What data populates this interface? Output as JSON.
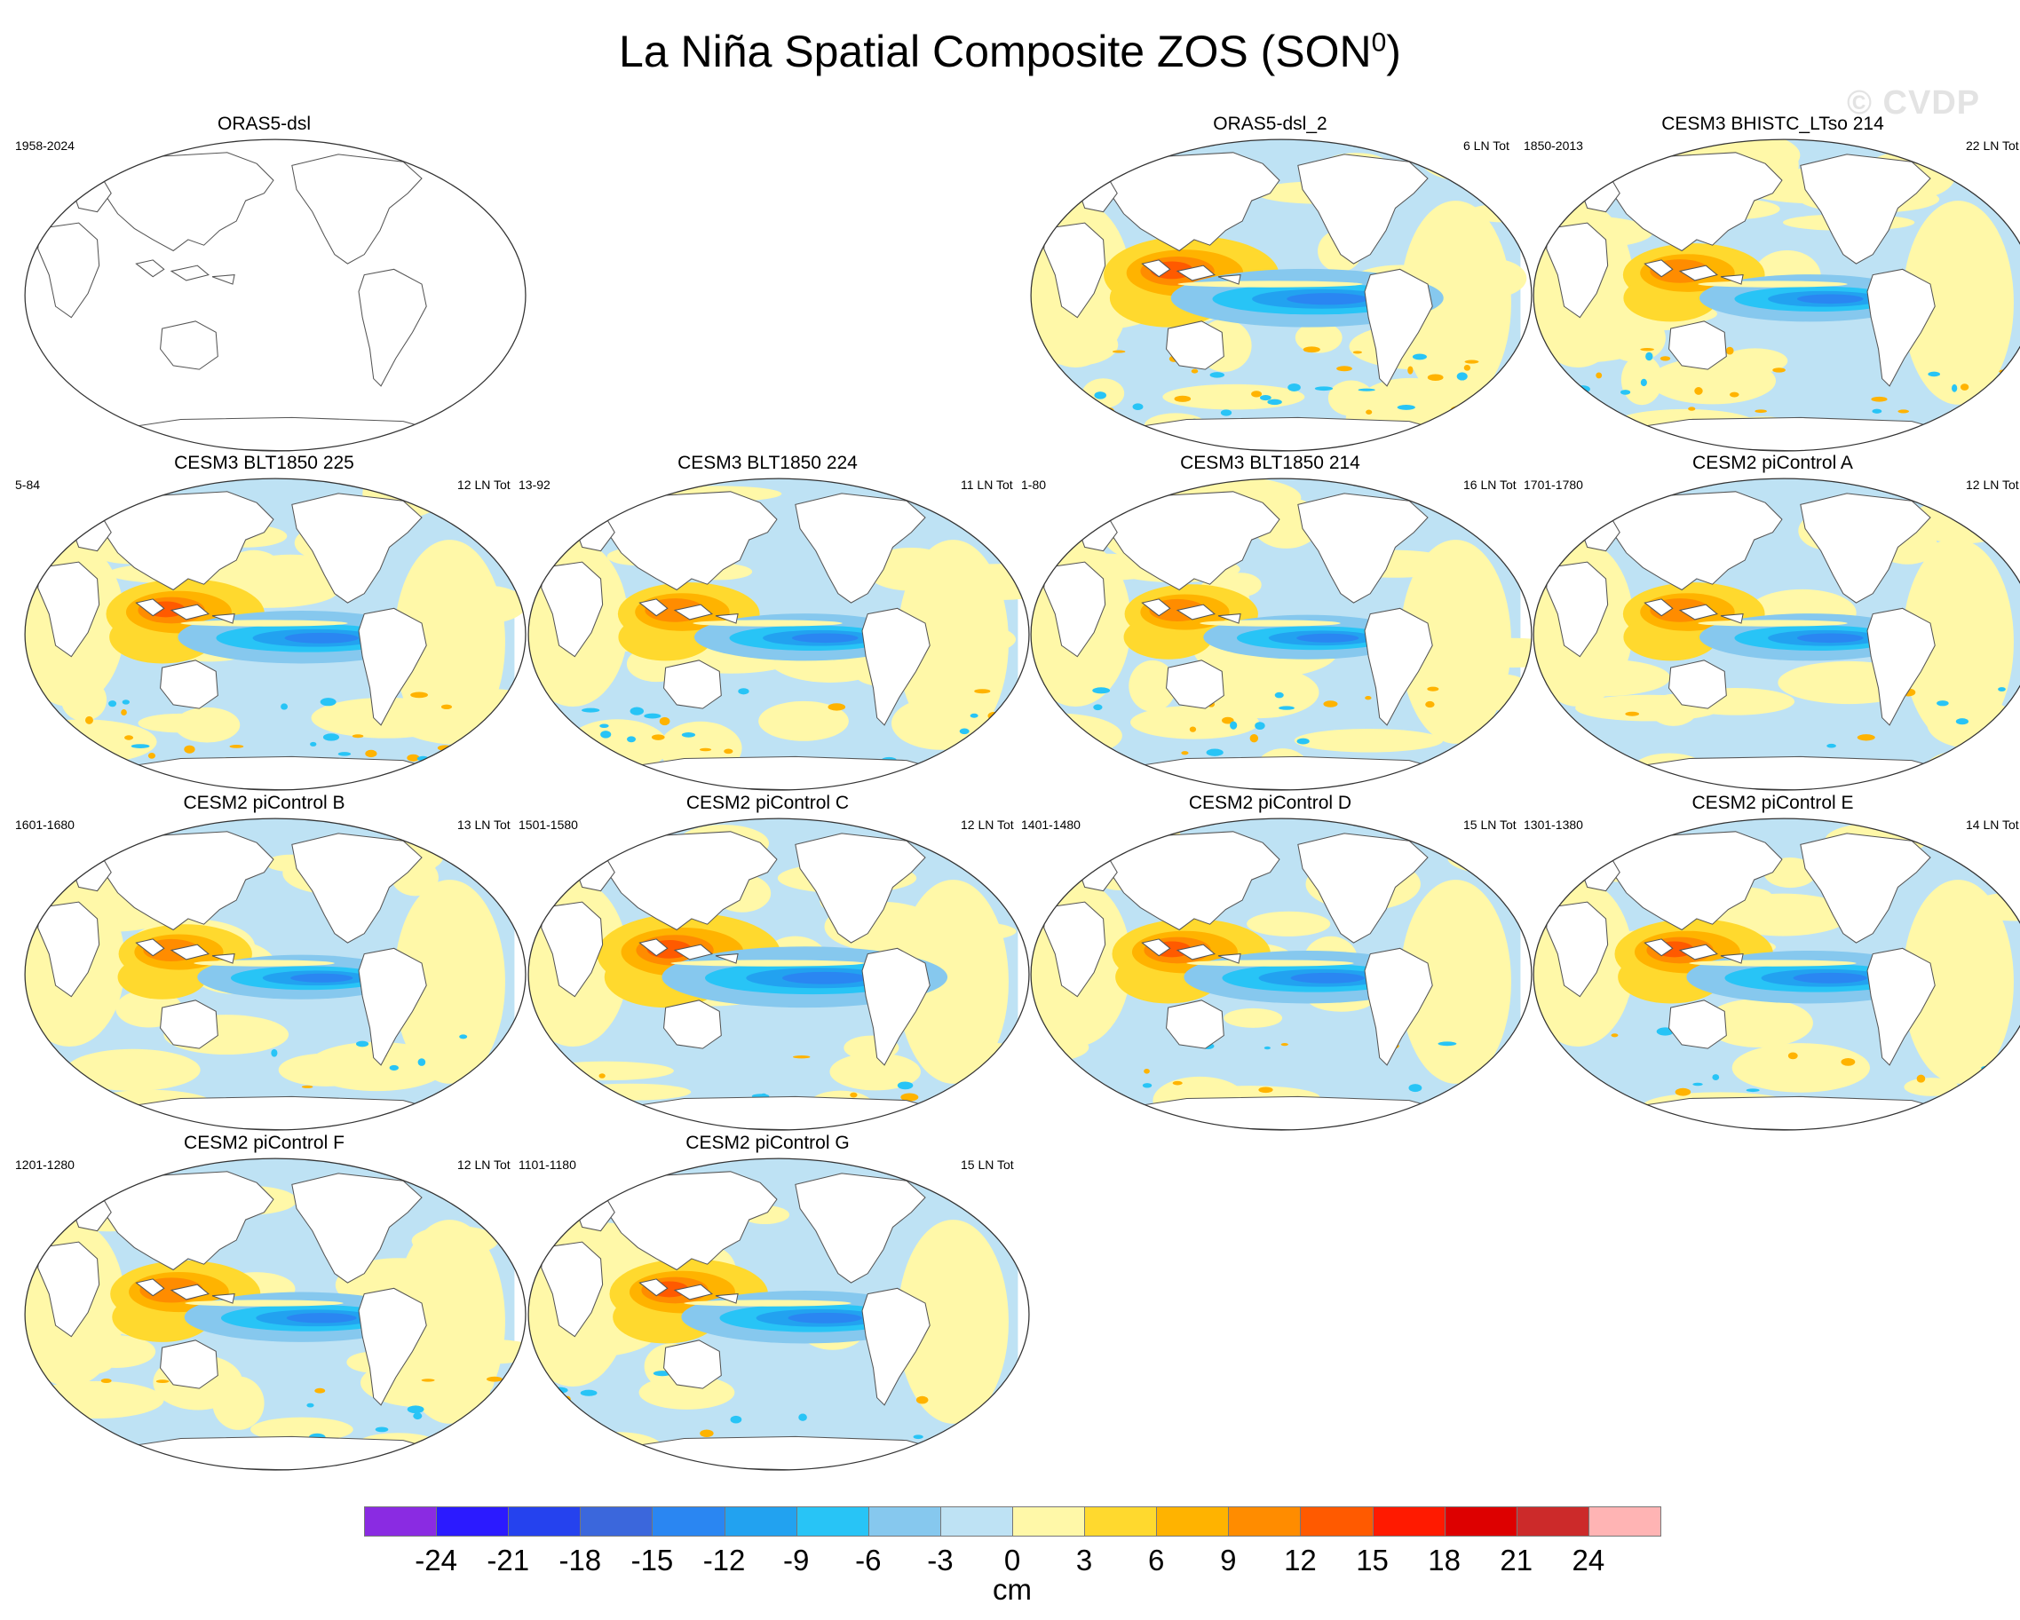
{
  "figure": {
    "title_main": "La Niña Spatial Composite ZOS (SON",
    "title_sup": "0",
    "title_close": ")",
    "watermark": "© CVDP"
  },
  "panels": [
    {
      "title": "ORAS5-dsl",
      "years": "1958-2024",
      "count": "",
      "has_data": false,
      "strength": 0,
      "noise": 0
    },
    {
      "title": "ORAS5-dsl_2",
      "years": "",
      "count": "6 LN Tot",
      "has_data": true,
      "strength": 1.05,
      "noise": 0.9
    },
    {
      "title": "CESM3 BHISTC_LTso 214",
      "years": "1850-2013",
      "count": "22 LN Tot",
      "has_data": true,
      "strength": 0.85,
      "noise": 0.7
    },
    {
      "title": "CESM3 BLT1850 225",
      "years": "5-84",
      "count": "12 LN Tot",
      "has_data": true,
      "strength": 0.95,
      "noise": 0.8
    },
    {
      "title": "CESM3 BLT1850 224",
      "years": "13-92",
      "count": "11 LN Tot",
      "has_data": true,
      "strength": 0.85,
      "noise": 0.7
    },
    {
      "title": "CESM3 BLT1850 214",
      "years": "1-80",
      "count": "16 LN Tot",
      "has_data": true,
      "strength": 0.8,
      "noise": 0.6
    },
    {
      "title": "CESM2 piControl A",
      "years": "1701-1780",
      "count": "12 LN Tot",
      "has_data": true,
      "strength": 0.85,
      "noise": 0.3
    },
    {
      "title": "CESM2 piControl B",
      "years": "1601-1680",
      "count": "13 LN Tot",
      "has_data": true,
      "strength": 0.8,
      "noise": 0.3
    },
    {
      "title": "CESM2 piControl C",
      "years": "1501-1580",
      "count": "12 LN Tot",
      "has_data": true,
      "strength": 1.1,
      "noise": 0.3
    },
    {
      "title": "CESM2 piControl D",
      "years": "1401-1480",
      "count": "15 LN Tot",
      "has_data": true,
      "strength": 0.95,
      "noise": 0.3
    },
    {
      "title": "CESM2 piControl E",
      "years": "1301-1380",
      "count": "14 LN Tot",
      "has_data": true,
      "strength": 0.95,
      "noise": 0.3
    },
    {
      "title": "CESM2 piControl F",
      "years": "1201-1280",
      "count": "12 LN Tot",
      "has_data": true,
      "strength": 0.9,
      "noise": 0.3
    },
    {
      "title": "CESM2 piControl G",
      "years": "1101-1180",
      "count": "15 LN Tot",
      "has_data": true,
      "strength": 0.95,
      "noise": 0.3
    }
  ],
  "colorbar": {
    "units": "cm",
    "ticks": [
      "-24",
      "-21",
      "-18",
      "-15",
      "-12",
      "-9",
      "-6",
      "-3",
      "0",
      "3",
      "6",
      "9",
      "12",
      "15",
      "18",
      "21",
      "24"
    ],
    "colors": [
      "#8a2be2",
      "#2b1aff",
      "#2542ee",
      "#3b67dc",
      "#2a86f2",
      "#22a2f0",
      "#28c4f6",
      "#86c8ee",
      "#bee2f4",
      "#fff8a8",
      "#ffd92e",
      "#ffb300",
      "#ff8c00",
      "#ff5a00",
      "#ff1a00",
      "#dd0000",
      "#cc2a2a",
      "#ffb4b4"
    ]
  }
}
